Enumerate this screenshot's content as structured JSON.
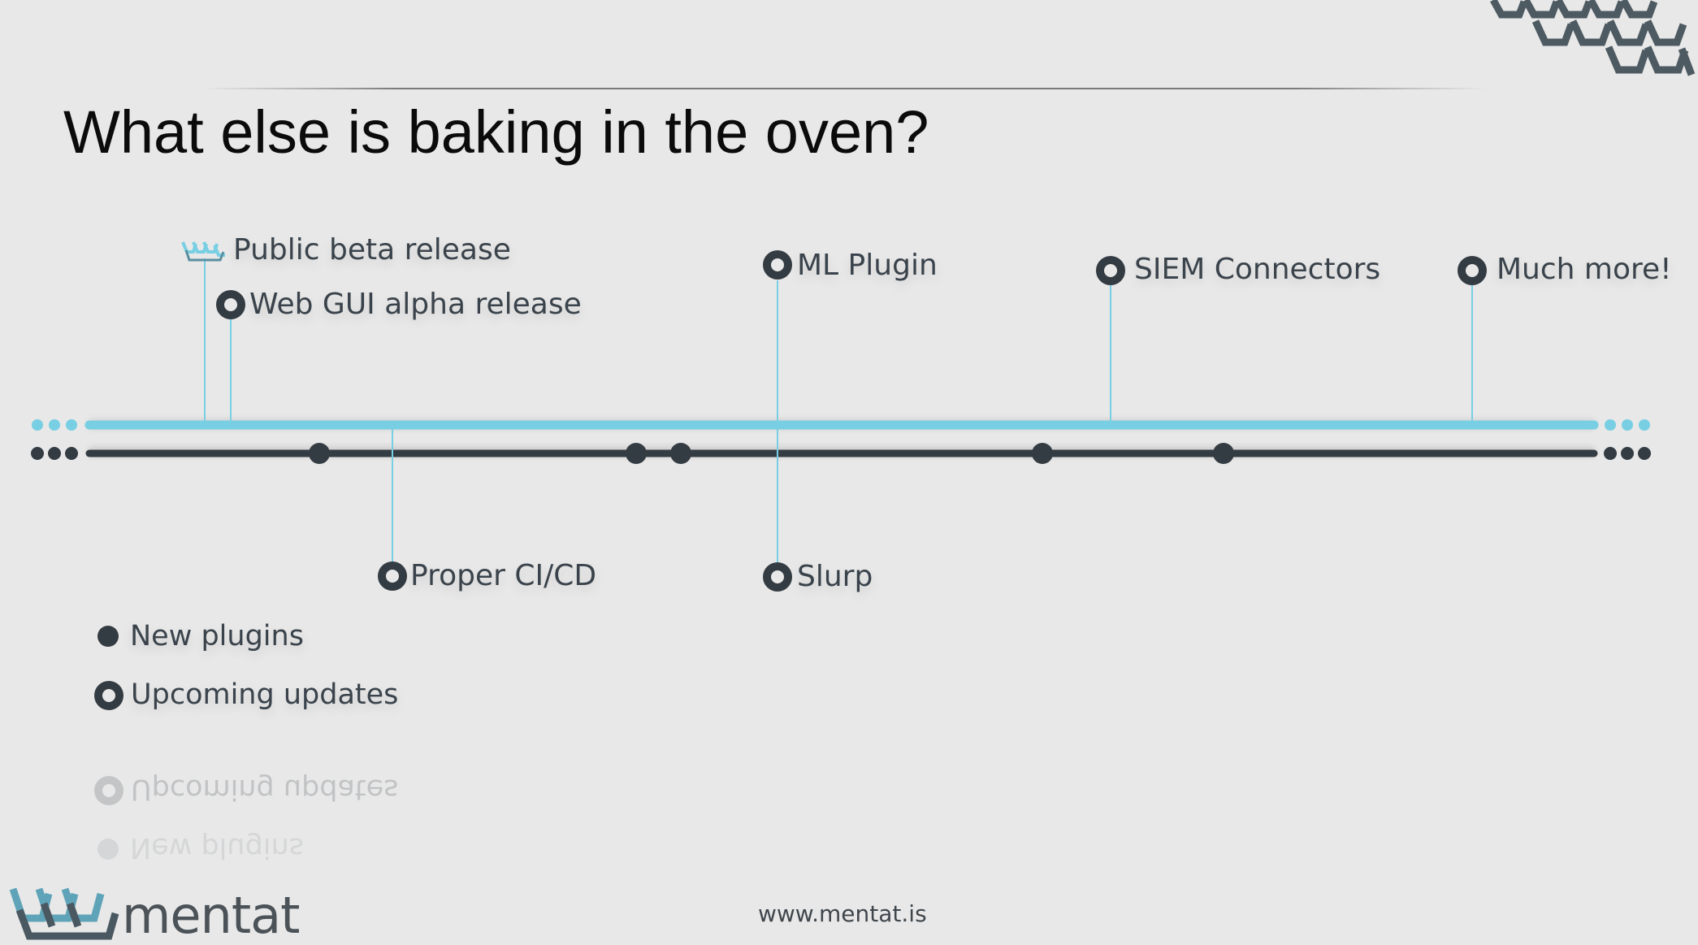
{
  "title": "What else is baking in the oven?",
  "timeline": {
    "above": [
      {
        "label": "Public beta release",
        "marker": "mentat-logo-icon"
      },
      {
        "label": "Web GUI alpha release",
        "marker": "ring-icon"
      },
      {
        "label": "ML Plugin",
        "marker": "ring-icon"
      },
      {
        "label": "SIEM Connectors",
        "marker": "ring-icon"
      },
      {
        "label": "Much more!",
        "marker": "ring-icon"
      }
    ],
    "below": [
      {
        "label": "Proper CI/CD",
        "marker": "ring-icon"
      },
      {
        "label": "Slurp",
        "marker": "ring-icon"
      }
    ]
  },
  "legend": {
    "new_plugins": "New plugins",
    "upcoming_updates": "Upcoming updates"
  },
  "footer": {
    "url": "www.mentat.is",
    "brand": "mentat"
  },
  "colors": {
    "background": "#e8e8e8",
    "accent_cyan": "#78cfe3",
    "dark": "#343c43",
    "text": "#3a434b"
  }
}
